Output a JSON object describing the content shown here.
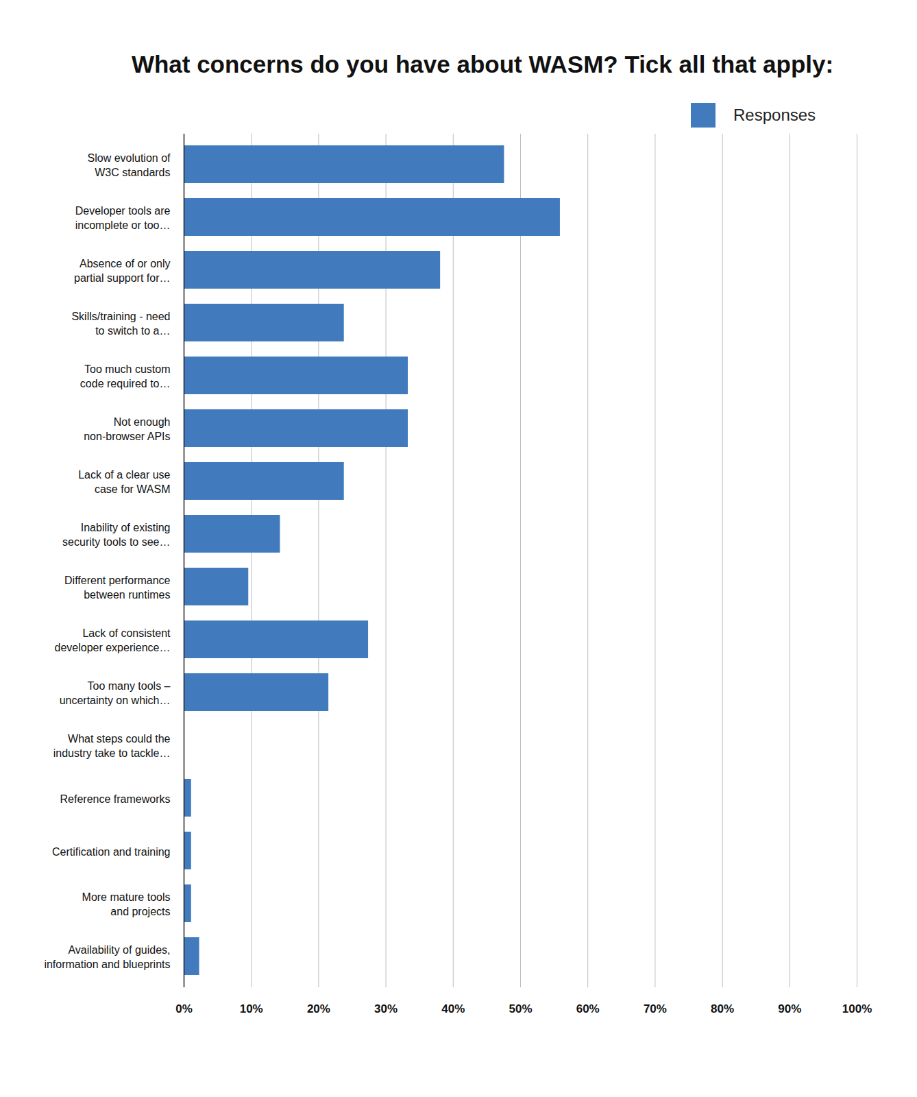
{
  "chart_data": {
    "type": "bar",
    "title": "What concerns do you have about WASM? Tick all that apply:",
    "orientation": "horizontal",
    "categories": [
      "Slow evolution of\nW3C standards",
      "Developer tools are\nincomplete or too…",
      "Absence of or only\npartial support for…",
      "Skills/training - need\nto switch to a…",
      "Too much custom\ncode required to…",
      "Not enough\nnon-browser APIs",
      "Lack of a clear use\ncase for WASM",
      "Inability of existing\nsecurity tools to see…",
      "Different performance\nbetween runtimes",
      "Lack of consistent\ndeveloper experience…",
      "Too many tools –\nuncertainty on which…",
      "What steps could the\nindustry take to tackle…",
      "Reference frameworks",
      "Certification and training",
      "More mature tools\nand projects",
      "Availability of guides,\ninformation and blueprints"
    ],
    "series": [
      {
        "name": "Responses",
        "color": "#417bbe",
        "values": [
          47.6,
          55.9,
          38.1,
          23.8,
          33.3,
          33.3,
          23.8,
          14.3,
          9.6,
          27.4,
          21.5,
          0,
          1.1,
          1.1,
          1.1,
          2.3
        ]
      }
    ],
    "xlim": [
      0,
      100
    ],
    "xticks": [
      {
        "value": 0,
        "label": "0%"
      },
      {
        "value": 10,
        "label": "10%"
      },
      {
        "value": 20,
        "label": "20%"
      },
      {
        "value": 30,
        "label": "30%"
      },
      {
        "value": 40,
        "label": "40%"
      },
      {
        "value": 50,
        "label": "50%"
      },
      {
        "value": 60,
        "label": "60%"
      },
      {
        "value": 70,
        "label": "70%"
      },
      {
        "value": 80,
        "label": "80%"
      },
      {
        "value": 90,
        "label": "90%"
      },
      {
        "value": 100,
        "label": "100%"
      }
    ],
    "grid": true,
    "legend": "top-right"
  }
}
